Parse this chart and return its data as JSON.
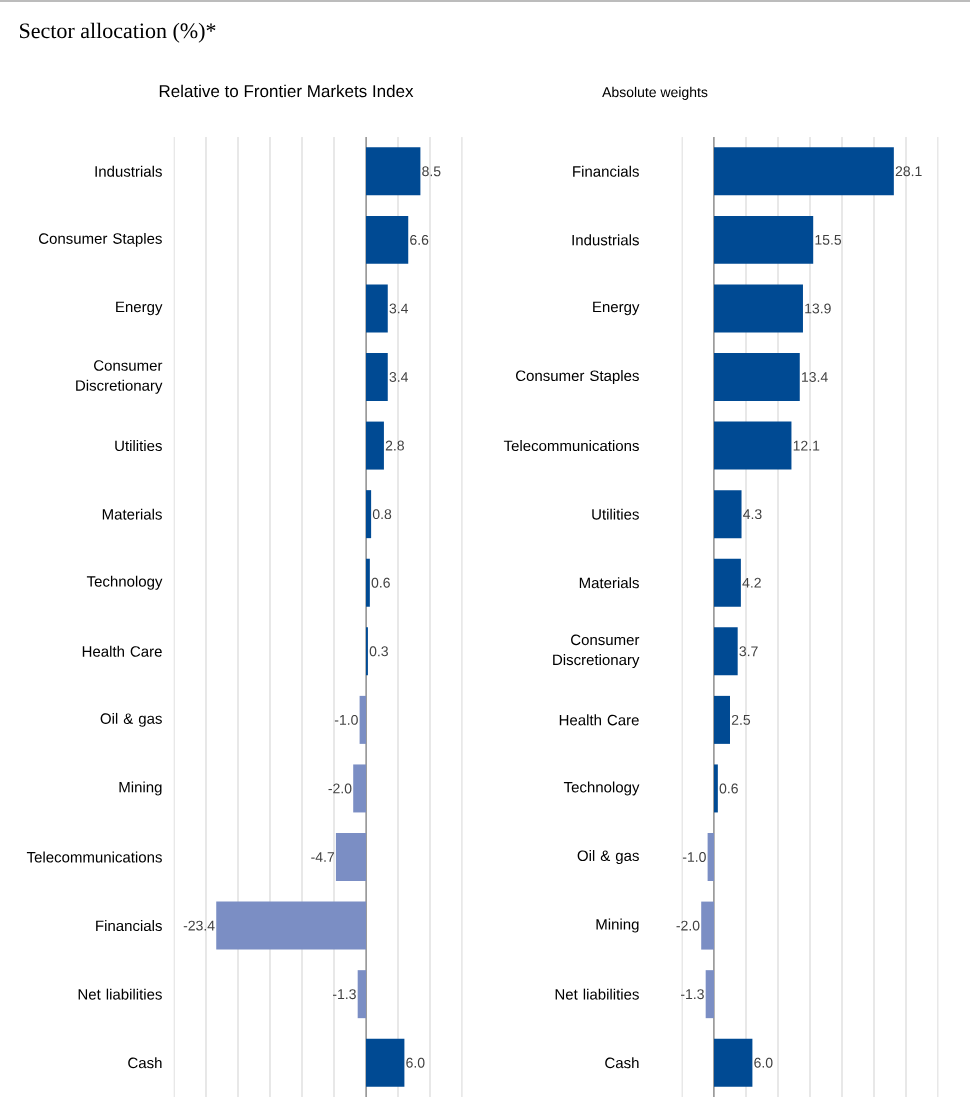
{
  "chart_data": [
    {
      "type": "bar",
      "orientation": "horizontal",
      "title": "Sector allocation (%)*",
      "subtitle": "Relative to Frontier Markets Index",
      "categories": [
        "Industrials",
        "Consumer Staples",
        "Energy",
        "Consumer Discretionary",
        "Utilities",
        "Materials",
        "Technology",
        "Health Care",
        "Oil & gas",
        "Mining",
        "Telecommunications",
        "Financials",
        "Net liabilities",
        "Cash"
      ],
      "values": [
        8.5,
        6.6,
        3.4,
        3.4,
        2.8,
        0.8,
        0.6,
        0.3,
        -1.0,
        -2.0,
        -4.7,
        -23.4,
        -1.3,
        6.0
      ],
      "colors": [
        "#004a93",
        "#004a93",
        "#004a93",
        "#004a93",
        "#004a93",
        "#004a93",
        "#004a93",
        "#004a93",
        "#7b8ec4",
        "#7b8ec4",
        "#7b8ec4",
        "#7b8ec4",
        "#7b8ec4",
        "#004a93"
      ],
      "xlim": [
        -30,
        15
      ],
      "xticks": [
        {
          "value": -30,
          "label": null
        },
        {
          "value": -25,
          "label": null
        },
        {
          "value": -20,
          "label": null
        },
        {
          "value": -15,
          "label": null
        },
        {
          "value": -10,
          "label": null
        },
        {
          "value": -5,
          "label": null
        },
        {
          "value": 0,
          "label": null
        },
        {
          "value": 5,
          "label": null
        },
        {
          "value": 10,
          "label": null
        },
        {
          "value": 15,
          "label": null
        }
      ],
      "value_labels": [
        "8.5",
        "6.6",
        "3.4",
        "3.4",
        "2.8",
        "0.8",
        "0.6",
        "0.3",
        "-1.0",
        "-2.0",
        "-4.7",
        "-23.4",
        "-1.3",
        "6.0"
      ],
      "grid": "x",
      "tick_labels": "y"
    },
    {
      "type": "bar",
      "orientation": "horizontal",
      "title": "Absolute weights",
      "categories": [
        "Financials",
        "Industrials",
        "Energy",
        "Consumer Staples",
        "Telecommunications",
        "Utilities",
        "Materials",
        "Consumer Discretionary",
        "Health Care",
        "Technology",
        "Oil & gas",
        "Mining",
        "Net liabilities",
        "Cash"
      ],
      "values": [
        28.1,
        15.5,
        13.9,
        13.4,
        12.1,
        4.3,
        4.2,
        3.7,
        2.5,
        0.6,
        -1.0,
        -2.0,
        -1.3,
        6.0
      ],
      "colors": [
        "#004a93",
        "#004a93",
        "#004a93",
        "#004a93",
        "#004a93",
        "#004a93",
        "#004a93",
        "#004a93",
        "#004a93",
        "#004a93",
        "#7b8ec4",
        "#7b8ec4",
        "#7b8ec4",
        "#004a93"
      ],
      "xlim": [
        -5,
        35
      ],
      "xticks": [
        {
          "value": -5,
          "label": null
        },
        {
          "value": 0,
          "label": null
        },
        {
          "value": 5,
          "label": null
        },
        {
          "value": 10,
          "label": null
        },
        {
          "value": 15,
          "label": null
        },
        {
          "value": 20,
          "label": null
        },
        {
          "value": 25,
          "label": null
        },
        {
          "value": 30,
          "label": null
        },
        {
          "value": 35,
          "label": null
        }
      ],
      "value_labels": [
        "28.1",
        "15.5",
        "13.9",
        "13.4",
        "12.1",
        "4.3",
        "4.2",
        "3.7",
        "2.5",
        "0.6",
        "-1.0",
        "-2.0",
        "-1.3",
        "6.0"
      ],
      "grid": "x",
      "tick_labels": "y"
    }
  ]
}
